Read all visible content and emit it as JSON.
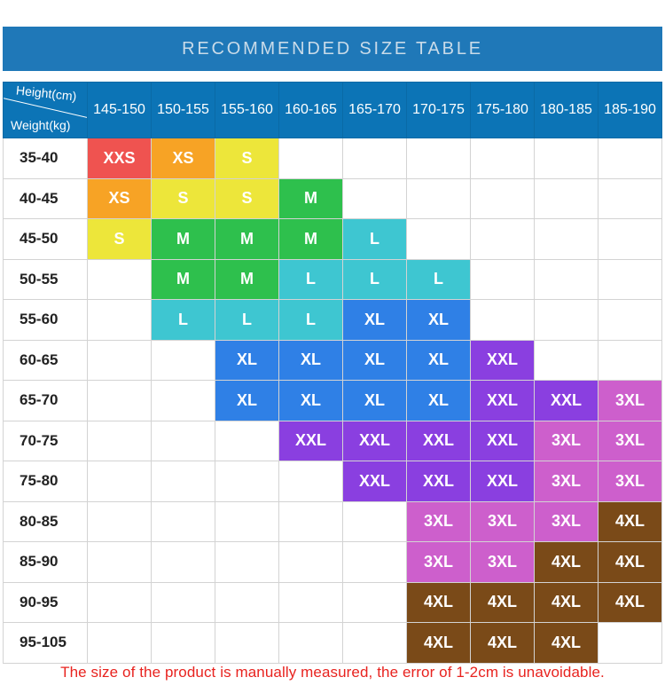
{
  "title": "RECOMMENDED SIZE TABLE",
  "corner": {
    "height_label": "Height(cm)",
    "weight_label": "Weight(kg)"
  },
  "heights": [
    "145-150",
    "150-155",
    "155-160",
    "160-165",
    "165-170",
    "170-175",
    "175-180",
    "180-185",
    "185-190"
  ],
  "rows": [
    {
      "weight": "35-40",
      "sizes": [
        "XXS",
        "XS",
        "S",
        "",
        "",
        "",
        "",
        "",
        ""
      ]
    },
    {
      "weight": "40-45",
      "sizes": [
        "XS",
        "S",
        "S",
        "M",
        "",
        "",
        "",
        "",
        ""
      ]
    },
    {
      "weight": "45-50",
      "sizes": [
        "S",
        "M",
        "M",
        "M",
        "L",
        "",
        "",
        "",
        ""
      ]
    },
    {
      "weight": "50-55",
      "sizes": [
        "",
        "M",
        "M",
        "L",
        "L",
        "L",
        "",
        "",
        ""
      ]
    },
    {
      "weight": "55-60",
      "sizes": [
        "",
        "L",
        "L",
        "L",
        "XL",
        "XL",
        "",
        "",
        ""
      ]
    },
    {
      "weight": "60-65",
      "sizes": [
        "",
        "",
        "XL",
        "XL",
        "XL",
        "XL",
        "XXL",
        "",
        ""
      ]
    },
    {
      "weight": "65-70",
      "sizes": [
        "",
        "",
        "XL",
        "XL",
        "XL",
        "XL",
        "XXL",
        "XXL",
        "3XL"
      ]
    },
    {
      "weight": "70-75",
      "sizes": [
        "",
        "",
        "",
        "XXL",
        "XXL",
        "XXL",
        "XXL",
        "3XL",
        "3XL"
      ]
    },
    {
      "weight": "75-80",
      "sizes": [
        "",
        "",
        "",
        "",
        "XXL",
        "XXL",
        "XXL",
        "3XL",
        "3XL"
      ]
    },
    {
      "weight": "80-85",
      "sizes": [
        "",
        "",
        "",
        "",
        "",
        "3XL",
        "3XL",
        "3XL",
        "4XL"
      ]
    },
    {
      "weight": "85-90",
      "sizes": [
        "",
        "",
        "",
        "",
        "",
        "3XL",
        "3XL",
        "4XL",
        "4XL"
      ]
    },
    {
      "weight": "90-95",
      "sizes": [
        "",
        "",
        "",
        "",
        "",
        "4XL",
        "4XL",
        "4XL",
        "4XL"
      ]
    },
    {
      "weight": "95-105",
      "sizes": [
        "",
        "",
        "",
        "",
        "",
        "4XL",
        "4XL",
        "4XL",
        ""
      ]
    }
  ],
  "size_colors": {
    "XXS": "#ef5350",
    "XS": "#f7a325",
    "S": "#ede63a",
    "M": "#2ec04d",
    "L": "#3ec6d1",
    "XL": "#2f80e6",
    "XXL": "#8a3fe0",
    "3XL": "#cd5fcc",
    "4XL": "#7a4a18"
  },
  "colors": {
    "header_bg": "#0c74b6",
    "title_bg": "#1f78b8",
    "note_text": "#e8231f"
  },
  "note": "The size of the product is manually measured, the error of 1-2cm is unavoidable."
}
